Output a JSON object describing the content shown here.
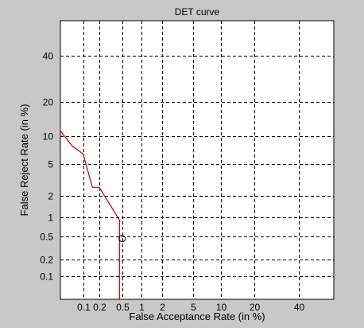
{
  "chart_data": {
    "type": "line",
    "title": "DET curve",
    "xlabel": "False Acceptance Rate (in %)",
    "ylabel": "False Reject Rate (in %)",
    "x_scale": "probit",
    "y_scale": "probit",
    "xlim": [
      0.035,
      58
    ],
    "ylim": [
      0.035,
      58
    ],
    "x_ticks": [
      0.1,
      0.2,
      0.5,
      1,
      2,
      5,
      10,
      20,
      40
    ],
    "x_tick_labels": [
      "0.1",
      "0.2",
      "0.5",
      "1",
      "2",
      "5",
      "10",
      "20",
      "40"
    ],
    "y_ticks": [
      0.1,
      0.2,
      0.5,
      1,
      2,
      5,
      10,
      20,
      40
    ],
    "y_tick_labels": [
      "0.1",
      "0.2",
      "0.5",
      "1",
      "2",
      "5",
      "10",
      "20",
      "40"
    ],
    "grid": true,
    "series": [
      {
        "color": "#c00000",
        "points": [
          [
            0.035,
            11.2
          ],
          [
            0.06,
            8.0
          ],
          [
            0.1,
            6.5
          ],
          [
            0.15,
            2.6
          ],
          [
            0.2,
            2.6
          ],
          [
            0.45,
            0.9
          ],
          [
            0.45,
            0.035
          ]
        ]
      }
    ],
    "marker": {
      "x": 0.5,
      "y": 0.46,
      "shape": "circle"
    },
    "colors": {
      "background": "#c8c8c8",
      "plot_background": "#ffffff",
      "grid": "#000000",
      "line": "#c00000"
    }
  }
}
